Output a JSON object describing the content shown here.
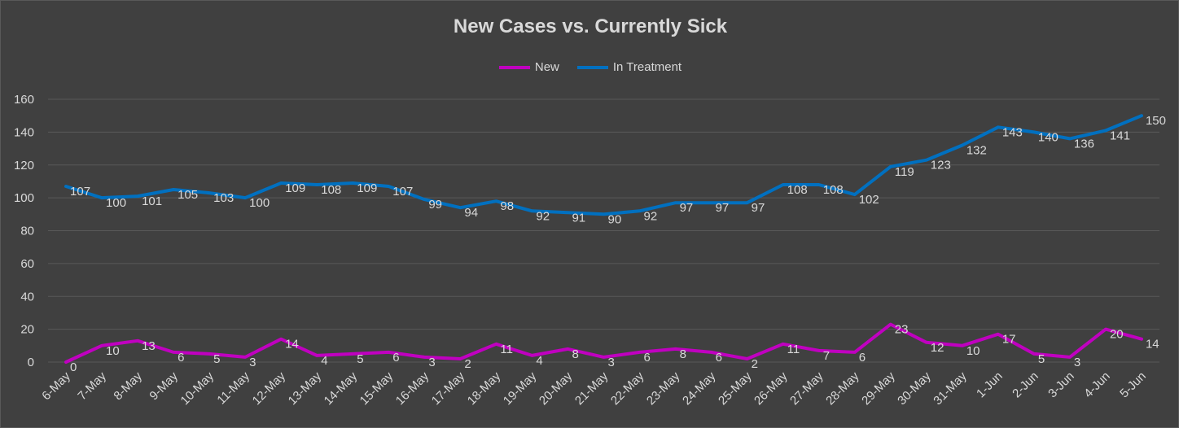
{
  "colors": {
    "background": "#404040",
    "grid": "#595959",
    "text": "#d9d9d9",
    "new": "#c000c0",
    "treatment": "#0070c0"
  },
  "chart_data": {
    "type": "line",
    "title": "New Cases vs. Currently Sick",
    "xlabel": "",
    "ylabel": "",
    "ylim": [
      0,
      160
    ],
    "yticks": [
      0,
      20,
      40,
      60,
      80,
      100,
      120,
      140,
      160
    ],
    "grid": true,
    "legend_position": "top",
    "categories": [
      "6-May",
      "7-May",
      "8-May",
      "9-May",
      "10-May",
      "11-May",
      "12-May",
      "13-May",
      "14-May",
      "15-May",
      "16-May",
      "17-May",
      "18-May",
      "19-May",
      "20-May",
      "21-May",
      "22-May",
      "23-May",
      "24-May",
      "25-May",
      "26-May",
      "27-May",
      "28-May",
      "29-May",
      "30-May",
      "31-May",
      "1-Jun",
      "2-Jun",
      "3-Jun",
      "4-Jun",
      "5-Jun"
    ],
    "series": [
      {
        "name": "New",
        "color": "#c000c0",
        "values": [
          0,
          10,
          13,
          6,
          5,
          3,
          14,
          4,
          5,
          6,
          3,
          2,
          11,
          4,
          8,
          3,
          6,
          8,
          6,
          2,
          11,
          7,
          6,
          23,
          12,
          10,
          17,
          5,
          3,
          20,
          14
        ]
      },
      {
        "name": "In Treatment",
        "color": "#0070c0",
        "values": [
          107,
          100,
          101,
          105,
          103,
          100,
          109,
          108,
          109,
          107,
          99,
          94,
          98,
          92,
          91,
          90,
          92,
          97,
          97,
          97,
          108,
          108,
          102,
          119,
          123,
          132,
          143,
          140,
          136,
          141,
          150
        ]
      }
    ]
  }
}
